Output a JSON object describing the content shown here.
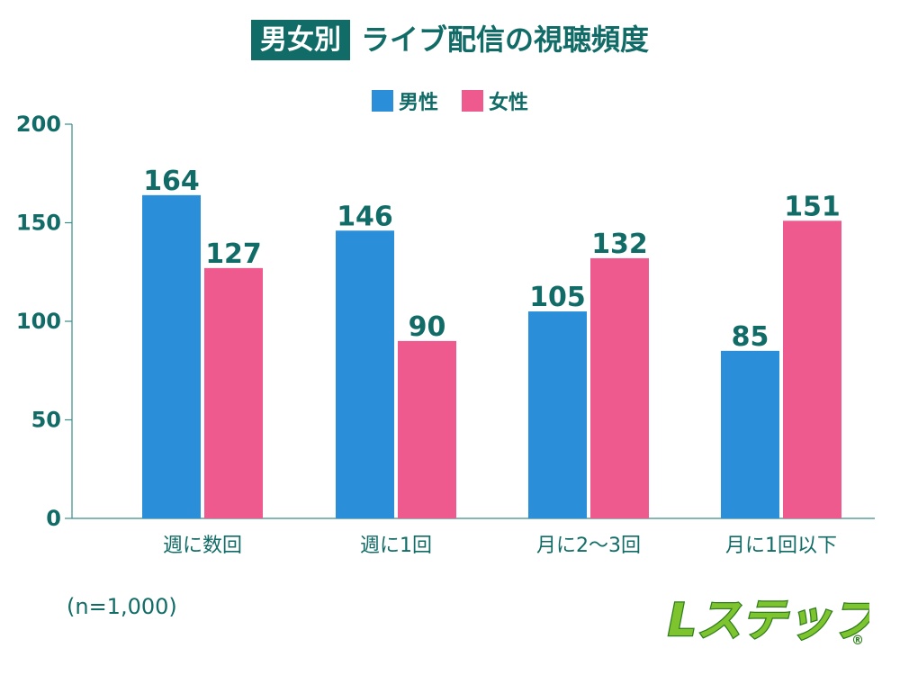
{
  "title": {
    "tag": "男女別",
    "main": "ライブ配信の視聴頻度"
  },
  "legend": {
    "male": "男性",
    "female": "女性"
  },
  "colors": {
    "male": "#2a8fd8",
    "female": "#ef5a8e",
    "text": "#116b66",
    "axis": "#3a8a8a"
  },
  "footnote": "(n=1,000)",
  "logo": {
    "text": "Lステップ",
    "mark": "®"
  },
  "chart_data": {
    "type": "bar",
    "categories": [
      "週に数回",
      "週に1回",
      "月に2〜3回",
      "月に1回以下"
    ],
    "series": [
      {
        "name": "男性",
        "values": [
          164,
          146,
          105,
          85
        ]
      },
      {
        "name": "女性",
        "values": [
          127,
          90,
          132,
          151
        ]
      }
    ],
    "ylim": [
      0,
      200
    ],
    "yticks": [
      0,
      50,
      100,
      150,
      200
    ],
    "grid": false,
    "legend_position": "top-center"
  }
}
